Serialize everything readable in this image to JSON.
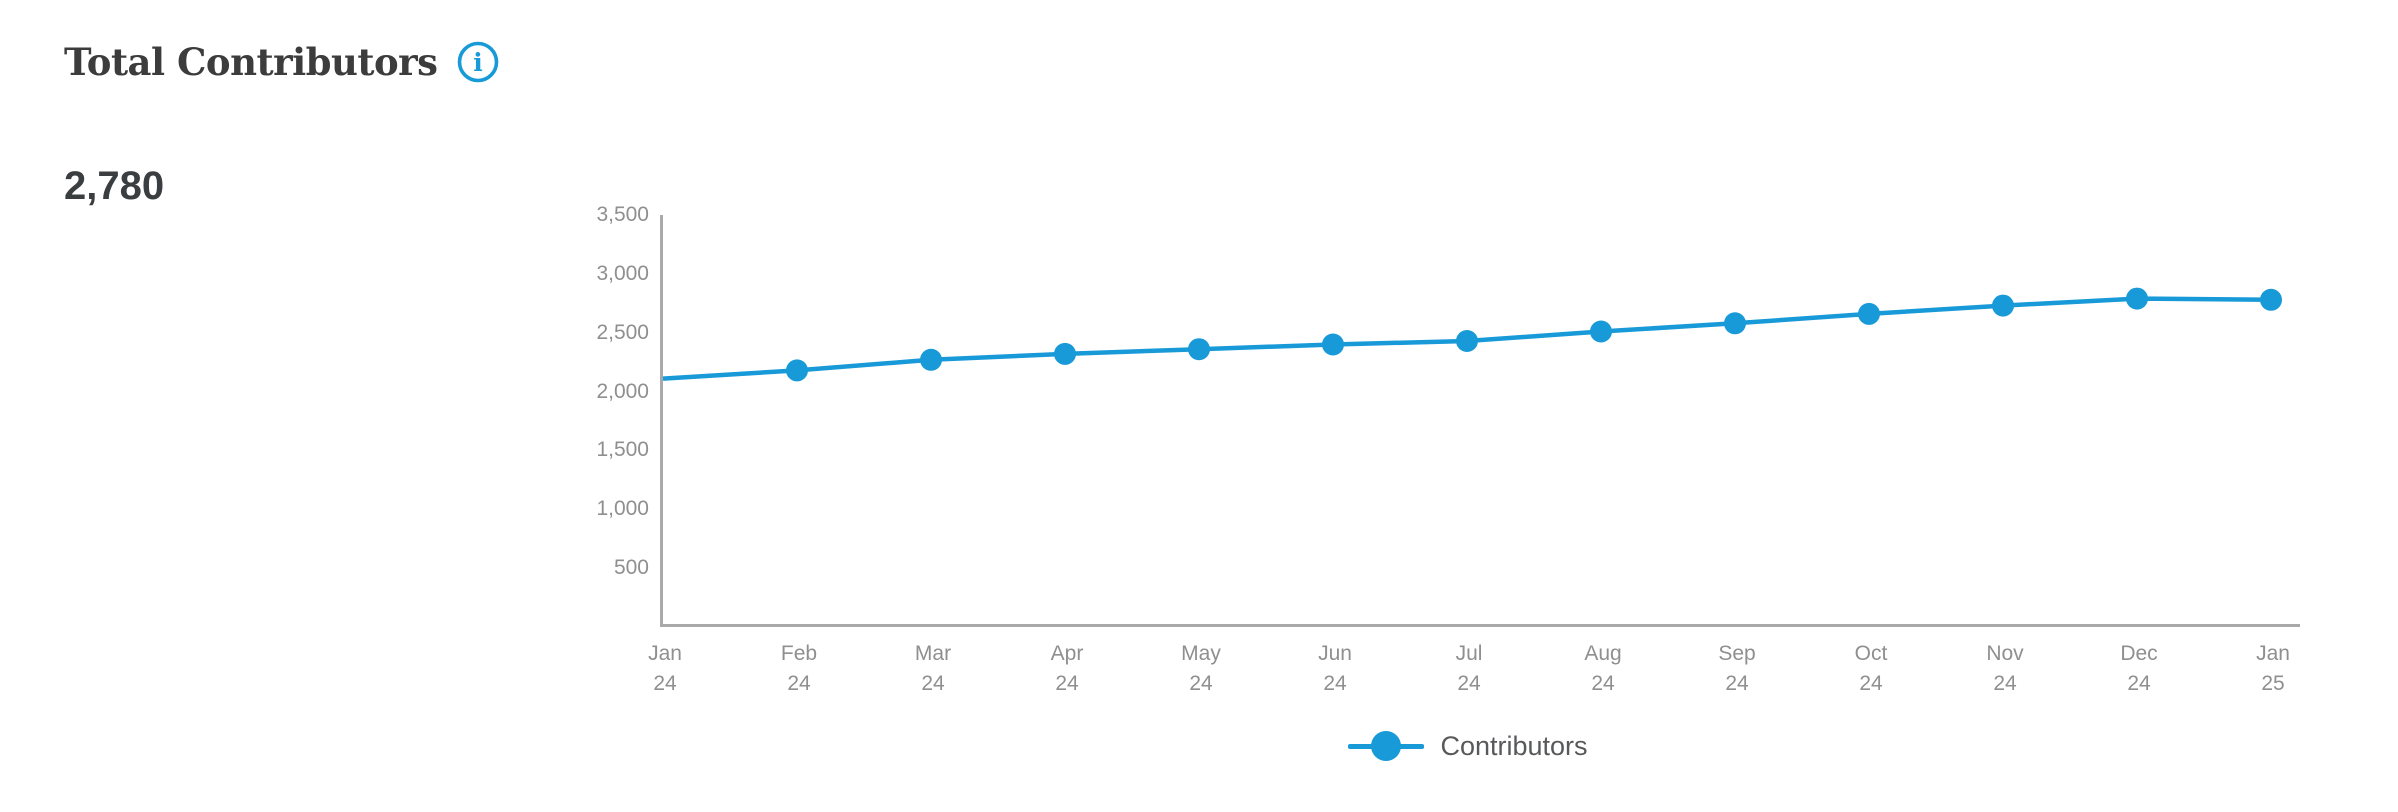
{
  "header": {
    "title": "Total Contributors",
    "value": "2,780",
    "info_icon": "info-icon"
  },
  "colors": {
    "accent_blue": "#189ad8",
    "axis_gray": "#a9a9a9",
    "tick_text_gray": "#8f8f8f",
    "title_text": "#3c3c3c"
  },
  "chart_data": {
    "type": "line",
    "title": "Total Contributors",
    "categories": [
      "Jan 24",
      "Feb 24",
      "Mar 24",
      "Apr 24",
      "May 24",
      "Jun 24",
      "Jul 24",
      "Aug 24",
      "Sep 24",
      "Oct 24",
      "Nov 24",
      "Dec 24",
      "Jan 25"
    ],
    "series": [
      {
        "name": "Contributors",
        "values": [
          2110,
          2180,
          2270,
          2320,
          2360,
          2400,
          2430,
          2510,
          2580,
          2660,
          2730,
          2790,
          2780
        ]
      }
    ],
    "ylim": [
      0,
      3500
    ],
    "yticks": [
      {
        "value": 3500,
        "label": "3,500"
      },
      {
        "value": 3000,
        "label": "3,000"
      },
      {
        "value": 2500,
        "label": "2,500"
      },
      {
        "value": 2000,
        "label": "2,000"
      },
      {
        "value": 1500,
        "label": "1,500"
      },
      {
        "value": 1000,
        "label": "1,000"
      },
      {
        "value": 500,
        "label": "500"
      }
    ],
    "grid": false,
    "legend_position": "bottom",
    "line_color": "#189ad8",
    "first_marker_clipped": true
  }
}
